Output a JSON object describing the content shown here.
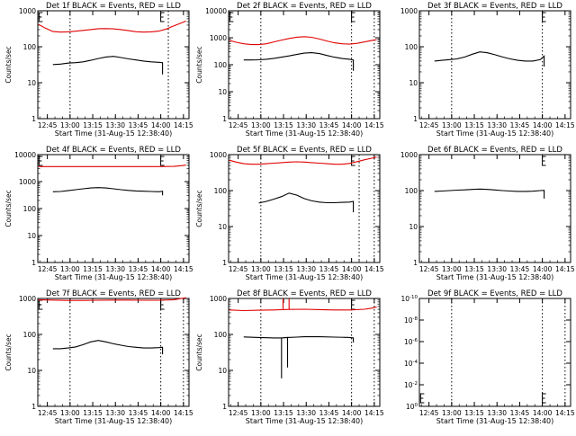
{
  "figure": {
    "time_axis_label": "Start Time (31-Aug-15 12:38:40)",
    "x_tick_labels": [
      "12:45",
      "13:00",
      "13:15",
      "13:30",
      "13:45",
      "14:00",
      "14:15"
    ],
    "x_tick_minutes_from_start": [
      6.33,
      21.33,
      36.33,
      51.33,
      66.33,
      81.33,
      96.33
    ],
    "x_range_minutes_from_start": [
      0,
      100
    ],
    "colors": {
      "events": "#000000",
      "lld": "#e00000",
      "axes": "#000000",
      "background": "#ffffff"
    }
  },
  "chart_data": [
    {
      "type": "line",
      "title": "Det 1f BLACK = Events, RED = LLD",
      "ylabel": "Counts/sec",
      "y_scale": "log",
      "ylim": [
        1,
        1000
      ],
      "y_ticks": [
        1,
        10,
        100,
        1000
      ],
      "y_tick_labels": [
        "1",
        "10",
        "100",
        "1000"
      ],
      "x_tick_labels": [
        "12:45",
        "13:00",
        "13:15",
        "13:30",
        "13:45",
        "14:00",
        "14:15"
      ],
      "dashed_time_markers": [
        21.33,
        86.33
      ],
      "bracket_markers": [
        0.8,
        81.3
      ],
      "series": [
        {
          "color": "#e00000",
          "x": [
            0.5,
            5,
            10,
            15,
            20,
            25,
            30,
            35,
            40,
            45,
            50,
            55,
            60,
            65,
            70,
            75,
            80,
            85,
            90,
            95,
            98
          ],
          "values": [
            420,
            330,
            265,
            255,
            260,
            270,
            285,
            300,
            318,
            320,
            315,
            300,
            280,
            262,
            255,
            260,
            272,
            310,
            380,
            460,
            520
          ]
        },
        {
          "color": "#000000",
          "x": [
            10,
            15,
            20,
            25,
            30,
            35,
            40,
            45,
            50,
            55,
            60,
            65,
            70,
            75,
            80,
            82.5,
            82.5
          ],
          "values": [
            32,
            33,
            35,
            36,
            38,
            42,
            47,
            52,
            54,
            50,
            46,
            43,
            40,
            38,
            37,
            36,
            17
          ]
        }
      ]
    },
    {
      "type": "line",
      "title": "Det 2f BLACK = Events, RED = LLD",
      "ylabel": "Counts/sec",
      "y_scale": "log",
      "ylim": [
        1,
        10000
      ],
      "y_ticks": [
        1,
        10,
        100,
        1000,
        10000
      ],
      "y_tick_labels": [
        "1",
        "10",
        "100",
        "1000",
        "10000"
      ],
      "x_tick_labels": [
        "12:45",
        "13:00",
        "13:15",
        "13:30",
        "13:45",
        "14:00",
        "14:15"
      ],
      "dashed_time_markers": [
        21.33,
        81.33,
        96.33
      ],
      "bracket_markers": [
        0.8,
        81.3
      ],
      "series": [
        {
          "color": "#e00000",
          "x": [
            0.5,
            5,
            10,
            15,
            20,
            25,
            30,
            35,
            40,
            45,
            50,
            55,
            60,
            65,
            70,
            75,
            80,
            85,
            90,
            95,
            98
          ],
          "values": [
            800,
            680,
            600,
            560,
            560,
            600,
            700,
            820,
            940,
            1050,
            1100,
            1040,
            900,
            760,
            650,
            600,
            580,
            620,
            700,
            800,
            850
          ]
        },
        {
          "color": "#000000",
          "x": [
            10,
            15,
            20,
            25,
            30,
            35,
            40,
            45,
            50,
            55,
            60,
            65,
            70,
            75,
            80,
            82.5,
            82.5
          ],
          "values": [
            150,
            150,
            152,
            160,
            172,
            190,
            212,
            240,
            270,
            280,
            260,
            220,
            190,
            170,
            160,
            150,
            60
          ]
        }
      ]
    },
    {
      "type": "line",
      "title": "Det 3f BLACK = Events, RED = LLD",
      "ylabel": "",
      "y_scale": "log",
      "ylim": [
        1,
        1000
      ],
      "y_ticks": [
        1,
        10,
        100,
        1000
      ],
      "y_tick_labels": [
        "1",
        "10",
        "100",
        "1000"
      ],
      "x_tick_labels": [
        "12:45",
        "13:00",
        "13:15",
        "13:30",
        "13:45",
        "14:00",
        "14:15"
      ],
      "dashed_time_markers": [
        21.33,
        81.33
      ],
      "bracket_markers": [
        81.3
      ],
      "series": [
        {
          "color": "#000000",
          "x": [
            10,
            15,
            20,
            25,
            30,
            35,
            40,
            45,
            50,
            55,
            60,
            65,
            70,
            75,
            80,
            82.5,
            82.5
          ],
          "values": [
            40,
            42,
            44,
            46,
            52,
            62,
            72,
            68,
            60,
            52,
            46,
            42,
            40,
            40,
            44,
            55,
            28
          ]
        }
      ]
    },
    {
      "type": "line",
      "title": "Det 4f BLACK = Events, RED = LLD",
      "ylabel": "Counts/sec",
      "y_scale": "log",
      "ylim": [
        1,
        10000
      ],
      "y_ticks": [
        1,
        10,
        100,
        1000,
        10000
      ],
      "y_tick_labels": [
        "1",
        "10",
        "100",
        "1000",
        "10000"
      ],
      "x_tick_labels": [
        "12:45",
        "13:00",
        "13:15",
        "13:30",
        "13:45",
        "14:00",
        "14:15"
      ],
      "dashed_time_markers": [],
      "bracket_markers": [
        0.8,
        81.3
      ],
      "series": [
        {
          "color": "#e00000",
          "x": [
            0.5,
            10,
            20,
            30,
            40,
            50,
            60,
            70,
            80,
            90,
            95,
            98
          ],
          "values": [
            3600,
            3600,
            3600,
            3600,
            3600,
            3600,
            3600,
            3600,
            3600,
            3650,
            3900,
            4100
          ]
        },
        {
          "color": "#000000",
          "x": [
            10,
            15,
            20,
            25,
            30,
            35,
            40,
            45,
            50,
            55,
            60,
            65,
            70,
            75,
            80,
            82.5,
            82.5
          ],
          "values": [
            420,
            430,
            460,
            500,
            540,
            580,
            600,
            580,
            540,
            500,
            470,
            450,
            440,
            430,
            420,
            440,
            310
          ]
        }
      ]
    },
    {
      "type": "line",
      "title": "Det 5f BLACK = Events, RED = LLD",
      "ylabel": "Counts/sec",
      "y_scale": "log",
      "ylim": [
        1,
        1000
      ],
      "y_ticks": [
        1,
        10,
        100,
        1000
      ],
      "y_tick_labels": [
        "1",
        "10",
        "100",
        "1000"
      ],
      "x_tick_labels": [
        "12:45",
        "13:00",
        "13:15",
        "13:30",
        "13:45",
        "14:00",
        "14:15"
      ],
      "dashed_time_markers": [
        21.33,
        86.33,
        96.33
      ],
      "bracket_markers": [
        81.3
      ],
      "series": [
        {
          "color": "#e00000",
          "x": [
            0.5,
            5,
            10,
            15,
            20,
            25,
            30,
            35,
            40,
            45,
            50,
            55,
            60,
            65,
            70,
            75,
            80,
            85,
            90,
            95,
            98
          ],
          "values": [
            700,
            620,
            560,
            540,
            540,
            560,
            580,
            600,
            620,
            630,
            620,
            600,
            580,
            560,
            540,
            540,
            570,
            640,
            720,
            800,
            860
          ]
        },
        {
          "color": "#000000",
          "x": [
            20,
            25,
            30,
            35,
            40,
            45,
            50,
            55,
            60,
            65,
            70,
            75,
            80,
            82.5,
            82.5
          ],
          "values": [
            45,
            50,
            58,
            68,
            85,
            75,
            60,
            52,
            48,
            46,
            46,
            47,
            48,
            50,
            25
          ]
        }
      ]
    },
    {
      "type": "line",
      "title": "Det 6f BLACK = Events, RED = LLD",
      "ylabel": "",
      "y_scale": "log",
      "ylim": [
        1,
        1000
      ],
      "y_ticks": [
        1,
        10,
        100,
        1000
      ],
      "y_tick_labels": [
        "1",
        "10",
        "100",
        "1000"
      ],
      "x_tick_labels": [
        "12:45",
        "13:00",
        "13:15",
        "13:30",
        "13:45",
        "14:00",
        "14:15"
      ],
      "dashed_time_markers": [],
      "bracket_markers": [
        81.3
      ],
      "series": [
        {
          "color": "#000000",
          "x": [
            10,
            15,
            20,
            25,
            30,
            35,
            40,
            45,
            50,
            55,
            60,
            65,
            70,
            75,
            80,
            82.5,
            82.5
          ],
          "values": [
            95,
            97,
            100,
            103,
            105,
            108,
            110,
            108,
            104,
            100,
            97,
            95,
            95,
            96,
            100,
            102,
            60
          ]
        }
      ]
    },
    {
      "type": "line",
      "title": "Det 7f BLACK = Events, RED = LLD",
      "ylabel": "Counts/sec",
      "y_scale": "log",
      "ylim": [
        1,
        1000
      ],
      "y_ticks": [
        1,
        10,
        100,
        1000
      ],
      "y_tick_labels": [
        "1",
        "10",
        "100",
        "1000"
      ],
      "x_tick_labels": [
        "12:45",
        "13:00",
        "13:15",
        "13:30",
        "13:45",
        "14:00",
        "14:15"
      ],
      "dashed_time_markers": [
        21.33,
        81.33,
        96.33
      ],
      "bracket_markers": [
        0.8,
        81.3
      ],
      "series": [
        {
          "color": "#e00000",
          "x": [
            0.5,
            10,
            20,
            30,
            40,
            50,
            60,
            70,
            80,
            90,
            95,
            98
          ],
          "values": [
            920,
            900,
            880,
            880,
            890,
            900,
            900,
            890,
            890,
            920,
            1000,
            1050
          ]
        },
        {
          "color": "#000000",
          "x": [
            10,
            15,
            20,
            25,
            30,
            35,
            40,
            45,
            50,
            55,
            60,
            65,
            70,
            75,
            80,
            82.5,
            82.5
          ],
          "values": [
            40,
            40,
            42,
            45,
            52,
            62,
            68,
            62,
            55,
            50,
            46,
            44,
            42,
            42,
            43,
            44,
            28
          ]
        }
      ]
    },
    {
      "type": "line",
      "title": "Det 8f BLACK = Events, RED = LLD",
      "ylabel": "Counts/sec",
      "y_scale": "log",
      "ylim": [
        1,
        1000
      ],
      "y_ticks": [
        1,
        10,
        100,
        1000
      ],
      "y_tick_labels": [
        "1",
        "10",
        "100",
        "1000"
      ],
      "x_tick_labels": [
        "12:45",
        "13:00",
        "13:15",
        "13:30",
        "13:45",
        "14:00",
        "14:15"
      ],
      "dashed_time_markers": [
        21.33,
        81.33,
        96.33
      ],
      "bracket_markers": [
        81.3
      ],
      "series": [
        {
          "color": "#e00000",
          "x": [
            0.5,
            10,
            20,
            30,
            36,
            36,
            36,
            40,
            40,
            40,
            50,
            60,
            70,
            80,
            90,
            95,
            98
          ],
          "values": [
            480,
            460,
            470,
            480,
            490,
            1000,
            490,
            495,
            1000,
            495,
            500,
            490,
            480,
            480,
            500,
            540,
            580
          ]
        },
        {
          "color": "#000000",
          "x": [
            10,
            20,
            30,
            35,
            35,
            35,
            39,
            39,
            39,
            45,
            50,
            60,
            70,
            80,
            82.5,
            82.5
          ],
          "values": [
            85,
            82,
            80,
            80,
            6,
            80,
            82,
            12,
            82,
            84,
            86,
            86,
            84,
            82,
            80,
            60
          ]
        }
      ]
    },
    {
      "type": "line",
      "title": "Det 9f BLACK = Events, RED = LLD",
      "ylabel": "",
      "y_scale": "log",
      "ylim": [
        1,
        1e-10
      ],
      "y_ticks": [
        1,
        0.01,
        0.0001,
        1e-06,
        1e-08,
        1e-10
      ],
      "y_tick_labels": [
        "10^0",
        "10^-2",
        "10^-4",
        "10^-6",
        "10^-8",
        "10^-10"
      ],
      "x_tick_labels": [
        "12:45",
        "13:00",
        "13:15",
        "13:30",
        "13:45",
        "14:00",
        "14:15"
      ],
      "dashed_time_markers": [
        21.33,
        81.33,
        96.33
      ],
      "bracket_markers_bottom": [
        0.8,
        81.3
      ],
      "series": []
    }
  ]
}
